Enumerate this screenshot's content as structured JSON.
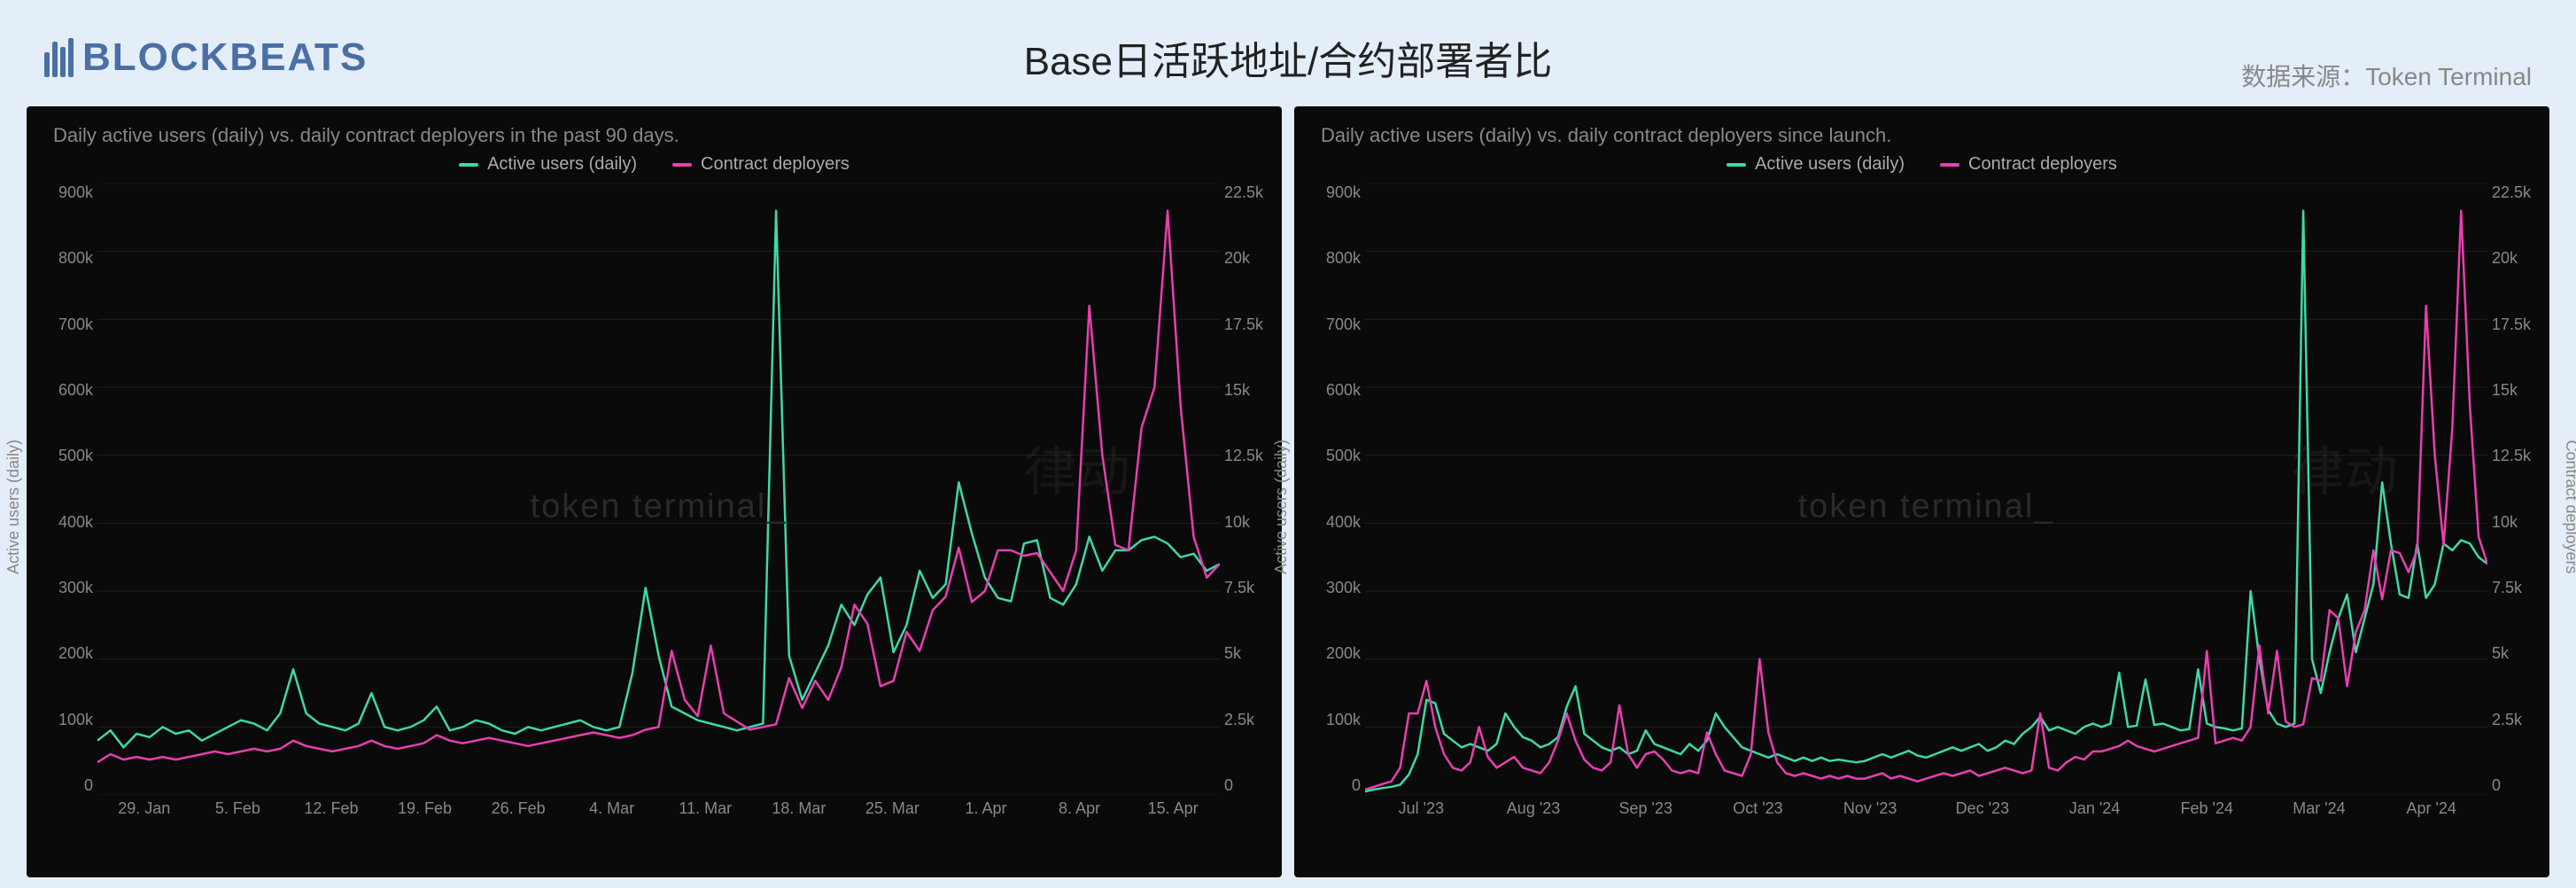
{
  "header": {
    "logo_text": "BLOCKBEATS",
    "title": "Base日活跃地址/合约部署者比",
    "source_label": "数据来源：Token Terminal",
    "logo_color": "#4a6fa5"
  },
  "colors": {
    "bg_page": "#e4eef8",
    "bg_panel": "#0a0a0a",
    "grid": "#1f1f1f",
    "text_muted": "#888888",
    "series_active": "#3dd9a6",
    "series_deployers": "#e83fb0"
  },
  "legend": {
    "active_label": "Active users (daily)",
    "deployers_label": "Contract deployers"
  },
  "watermark": "token terminal_",
  "watermark2": "律动",
  "chart_left": {
    "subtitle": "Daily active users (daily) vs. daily contract deployers in the past 90 days.",
    "type": "dual-axis-line",
    "y_left_label": "Active users (daily)",
    "y_right_label": "Contract deployers",
    "y_left_ticks": [
      "900k",
      "800k",
      "700k",
      "600k",
      "500k",
      "400k",
      "300k",
      "200k",
      "100k",
      "0"
    ],
    "y_right_ticks": [
      "22.5k",
      "20k",
      "17.5k",
      "15k",
      "12.5k",
      "10k",
      "7.5k",
      "5k",
      "2.5k",
      "0"
    ],
    "y_left_max": 900,
    "y_right_max": 22.5,
    "x_ticks": [
      "29. Jan",
      "5. Feb",
      "12. Feb",
      "19. Feb",
      "26. Feb",
      "4. Mar",
      "11. Mar",
      "18. Mar",
      "25. Mar",
      "1. Apr",
      "8. Apr",
      "15. Apr"
    ],
    "active_users_k": [
      80,
      95,
      70,
      90,
      85,
      100,
      90,
      95,
      80,
      90,
      100,
      110,
      105,
      95,
      120,
      185,
      120,
      105,
      100,
      95,
      105,
      150,
      100,
      95,
      100,
      110,
      130,
      95,
      100,
      110,
      105,
      95,
      90,
      100,
      95,
      100,
      105,
      110,
      100,
      95,
      100,
      180,
      305,
      205,
      130,
      120,
      110,
      105,
      100,
      95,
      100,
      105,
      860,
      205,
      140,
      180,
      220,
      280,
      250,
      295,
      320,
      210,
      250,
      330,
      290,
      310,
      460,
      385,
      320,
      290,
      285,
      370,
      375,
      290,
      280,
      310,
      380,
      330,
      360,
      360,
      375,
      380,
      370,
      350,
      355,
      330,
      340
    ],
    "deployers_k": [
      1.2,
      1.5,
      1.3,
      1.4,
      1.3,
      1.4,
      1.3,
      1.4,
      1.5,
      1.6,
      1.5,
      1.6,
      1.7,
      1.6,
      1.7,
      2.0,
      1.8,
      1.7,
      1.6,
      1.7,
      1.8,
      2.0,
      1.8,
      1.7,
      1.8,
      1.9,
      2.2,
      2.0,
      1.9,
      2.0,
      2.1,
      2.0,
      1.9,
      1.8,
      1.9,
      2.0,
      2.1,
      2.2,
      2.3,
      2.2,
      2.1,
      2.2,
      2.4,
      2.5,
      5.3,
      3.5,
      2.9,
      5.5,
      3.0,
      2.7,
      2.4,
      2.5,
      2.6,
      4.3,
      3.2,
      4.2,
      3.5,
      4.7,
      7.0,
      6.3,
      4.0,
      4.2,
      6.0,
      5.3,
      6.8,
      7.3,
      9.1,
      7.1,
      7.5,
      9.0,
      9.0,
      8.8,
      8.9,
      8.2,
      7.5,
      9.0,
      18.0,
      12.5,
      9.2,
      9.0,
      13.5,
      15.0,
      21.5,
      14.3,
      9.5,
      8.0,
      8.5
    ]
  },
  "chart_right": {
    "subtitle": "Daily active users (daily) vs. daily contract deployers since launch.",
    "type": "dual-axis-line",
    "y_left_label": "Active users (daily)",
    "y_right_label": "Contract deployers",
    "y_left_ticks": [
      "900k",
      "800k",
      "700k",
      "600k",
      "500k",
      "400k",
      "300k",
      "200k",
      "100k",
      "0"
    ],
    "y_right_ticks": [
      "22.5k",
      "20k",
      "17.5k",
      "15k",
      "12.5k",
      "10k",
      "7.5k",
      "5k",
      "2.5k",
      "0"
    ],
    "y_left_max": 900,
    "y_right_max": 22.5,
    "x_ticks": [
      "Jul '23",
      "Aug '23",
      "Sep '23",
      "Oct '23",
      "Nov '23",
      "Dec '23",
      "Jan '24",
      "Feb '24",
      "Mar '24",
      "Apr '24"
    ],
    "active_users_k": [
      5,
      8,
      10,
      12,
      15,
      30,
      60,
      140,
      135,
      90,
      80,
      70,
      75,
      70,
      65,
      75,
      120,
      100,
      85,
      80,
      70,
      75,
      85,
      130,
      160,
      90,
      80,
      70,
      65,
      70,
      60,
      65,
      95,
      75,
      70,
      65,
      60,
      75,
      65,
      80,
      120,
      100,
      85,
      70,
      65,
      60,
      55,
      60,
      55,
      50,
      55,
      50,
      55,
      50,
      52,
      50,
      48,
      50,
      55,
      60,
      55,
      60,
      65,
      58,
      55,
      60,
      65,
      70,
      65,
      70,
      75,
      65,
      70,
      80,
      75,
      90,
      100,
      115,
      95,
      100,
      95,
      90,
      100,
      105,
      100,
      105,
      180,
      100,
      102,
      170,
      103,
      105,
      100,
      95,
      97,
      185,
      105,
      100,
      98,
      95,
      98,
      300,
      200,
      125,
      105,
      100,
      105,
      860,
      200,
      150,
      210,
      260,
      295,
      210,
      260,
      310,
      460,
      370,
      295,
      290,
      370,
      290,
      310,
      370,
      360,
      375,
      370,
      350,
      340
    ],
    "deployers_k": [
      0.2,
      0.3,
      0.4,
      0.5,
      1.0,
      3.0,
      3.0,
      4.2,
      2.5,
      1.5,
      1.0,
      0.9,
      1.2,
      2.5,
      1.4,
      1.0,
      1.2,
      1.4,
      1.0,
      0.9,
      0.8,
      1.2,
      2.0,
      3.0,
      2.0,
      1.3,
      1.0,
      0.9,
      1.2,
      3.3,
      1.5,
      1.0,
      1.5,
      1.6,
      1.3,
      0.9,
      0.8,
      0.9,
      0.8,
      2.3,
      1.5,
      0.9,
      0.8,
      0.7,
      1.5,
      5.0,
      2.3,
      1.2,
      0.8,
      0.7,
      0.8,
      0.7,
      0.6,
      0.7,
      0.6,
      0.7,
      0.6,
      0.6,
      0.7,
      0.8,
      0.6,
      0.7,
      0.6,
      0.5,
      0.6,
      0.7,
      0.8,
      0.7,
      0.8,
      0.9,
      0.7,
      0.8,
      0.9,
      1.0,
      0.9,
      0.8,
      0.9,
      3.0,
      1.0,
      0.9,
      1.2,
      1.4,
      1.3,
      1.6,
      1.6,
      1.7,
      1.8,
      2.0,
      1.8,
      1.7,
      1.6,
      1.7,
      1.8,
      1.9,
      2.0,
      2.1,
      5.3,
      1.9,
      2.0,
      2.1,
      2.0,
      2.5,
      5.5,
      3.0,
      5.3,
      2.7,
      2.5,
      2.6,
      4.3,
      4.2,
      6.8,
      6.5,
      4.0,
      6.0,
      6.8,
      9.0,
      7.2,
      9.0,
      8.9,
      8.2,
      9.0,
      18.0,
      12.5,
      9.2,
      13.5,
      21.5,
      14.3,
      9.5,
      8.5
    ]
  }
}
